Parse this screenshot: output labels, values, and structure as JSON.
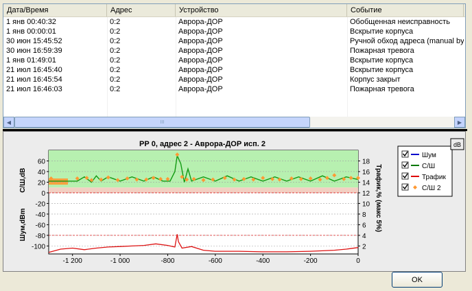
{
  "events": {
    "columns": [
      "Дата/Время",
      "Адрес",
      "Устройство",
      "Событие"
    ],
    "rows": [
      [
        "1 янв 00:40:32",
        "0:2",
        "Аврора-ДОР",
        "Обобщенная неисправность"
      ],
      [
        "1 янв 00:00:01",
        "0:2",
        "Аврора-ДОР",
        "Вскрытие корпуса"
      ],
      [
        "30 июн 15:45:52",
        "0:2",
        "Аврора-ДОР",
        "Ручной обход адреса (manual bypass)"
      ],
      [
        "30 июн 16:59:39",
        "0:2",
        "Аврора-ДОР",
        "Пожарная тревога"
      ],
      [
        "1 янв 01:49:01",
        "0:2",
        "Аврора-ДОР",
        "Вскрытие корпуса"
      ],
      [
        "21 июл 16:45:40",
        "0:2",
        "Аврора-ДОР",
        "Вскрытие корпуса"
      ],
      [
        "21 июл 16:45:54",
        "0:2",
        "Аврора-ДОР",
        "Корпус закрыт"
      ],
      [
        "21 июл 16:46:03",
        "0:2",
        "Аврора-ДОР",
        "Пожарная тревога"
      ]
    ],
    "scroll_left_icon": "arrow-left-icon",
    "scroll_right_icon": "arrow-right-icon",
    "scroll_thumb_grip": "III"
  },
  "chart": {
    "title": "РР 0, адрес 2 - Аврора-ДОР исп. 2",
    "db_button": "dB",
    "left_label_top": "С/Ш,dB",
    "left_label_bottom": "Шум,dBm",
    "right_label": "Трафик,% (макс 5%)",
    "legend": [
      {
        "label": "Шум",
        "color": "#0000cc",
        "checked": true,
        "marker": "line"
      },
      {
        "label": "С/Ш",
        "color": "#007700",
        "checked": true,
        "marker": "line"
      },
      {
        "label": "Трафик",
        "color": "#dd0000",
        "checked": true,
        "marker": "line"
      },
      {
        "label": "С/Ш 2",
        "color": "#ff9933",
        "checked": true,
        "marker": "diamond"
      }
    ],
    "colors": {
      "zone_good": "#b7f0b0",
      "zone_warn": "#f3cfc2",
      "snr": "#119911",
      "traffic": "#dd1111",
      "snr2": "#ff9933"
    }
  },
  "chart_data": {
    "type": "line",
    "title": "РР 0, адрес 2 - Аврора-ДОР исп. 2",
    "xlim": [
      -1300,
      0
    ],
    "x_ticks": [
      "-1 200",
      "-1 000",
      "-800",
      "-600",
      "-400",
      "-200",
      "0"
    ],
    "x_tick_values": [
      -1200,
      -1000,
      -800,
      -600,
      -400,
      -200,
      0
    ],
    "y_left_ticks": [
      60,
      40,
      20,
      0,
      -20,
      -40,
      -60,
      -80,
      -100
    ],
    "y_right_ticks": [
      18,
      16,
      14,
      12,
      10,
      8,
      6,
      4,
      2
    ],
    "ylim_left": [
      -115,
      80
    ],
    "series": [
      {
        "name": "С/Ш",
        "points": [
          [
            -1300,
            22
          ],
          [
            -1250,
            22
          ],
          [
            -1180,
            22
          ],
          [
            -1150,
            30
          ],
          [
            -1120,
            20
          ],
          [
            -1100,
            32
          ],
          [
            -1080,
            22
          ],
          [
            -1050,
            30
          ],
          [
            -1000,
            22
          ],
          [
            -950,
            30
          ],
          [
            -900,
            22
          ],
          [
            -860,
            30
          ],
          [
            -820,
            22
          ],
          [
            -790,
            22
          ],
          [
            -770,
            40
          ],
          [
            -760,
            70
          ],
          [
            -745,
            55
          ],
          [
            -730,
            20
          ],
          [
            -715,
            45
          ],
          [
            -700,
            22
          ],
          [
            -650,
            30
          ],
          [
            -600,
            22
          ],
          [
            -550,
            32
          ],
          [
            -500,
            22
          ],
          [
            -450,
            30
          ],
          [
            -400,
            22
          ],
          [
            -350,
            30
          ],
          [
            -300,
            22
          ],
          [
            -250,
            30
          ],
          [
            -200,
            22
          ],
          [
            -150,
            32
          ],
          [
            -100,
            22
          ],
          [
            -50,
            30
          ],
          [
            0,
            25
          ]
        ]
      },
      {
        "name": "Трафик",
        "points": [
          [
            -1300,
            -112
          ],
          [
            -1250,
            -106
          ],
          [
            -1200,
            -104
          ],
          [
            -1150,
            -107
          ],
          [
            -1100,
            -104
          ],
          [
            -1050,
            -102
          ],
          [
            -1000,
            -101
          ],
          [
            -950,
            -100
          ],
          [
            -900,
            -99
          ],
          [
            -850,
            -96
          ],
          [
            -800,
            -99
          ],
          [
            -770,
            -102
          ],
          [
            -760,
            -78
          ],
          [
            -755,
            -92
          ],
          [
            -740,
            -104
          ],
          [
            -700,
            -101
          ],
          [
            -650,
            -108
          ],
          [
            -600,
            -110
          ],
          [
            -500,
            -110
          ],
          [
            -400,
            -111
          ],
          [
            -300,
            -111
          ],
          [
            -200,
            -110
          ],
          [
            -100,
            -108
          ],
          [
            -50,
            -106
          ],
          [
            0,
            -103
          ]
        ]
      },
      {
        "name": "С/Ш 2",
        "points": [
          [
            -1290,
            27
          ],
          [
            -1180,
            27
          ],
          [
            -1140,
            28
          ],
          [
            -1120,
            24
          ],
          [
            -1080,
            25
          ],
          [
            -1050,
            29
          ],
          [
            -1010,
            24
          ],
          [
            -970,
            27
          ],
          [
            -930,
            25
          ],
          [
            -890,
            25
          ],
          [
            -860,
            28
          ],
          [
            -830,
            26
          ],
          [
            -800,
            26
          ],
          [
            -760,
            72
          ],
          [
            -740,
            30
          ],
          [
            -720,
            25
          ],
          [
            -690,
            26
          ],
          [
            -650,
            24
          ],
          [
            -610,
            25
          ],
          [
            -560,
            28
          ],
          [
            -520,
            25
          ],
          [
            -480,
            26
          ],
          [
            -440,
            25
          ],
          [
            -400,
            28
          ],
          [
            -360,
            26
          ],
          [
            -330,
            25
          ],
          [
            -280,
            27
          ],
          [
            -240,
            26
          ],
          [
            -200,
            27
          ],
          [
            -160,
            25
          ],
          [
            -130,
            28
          ],
          [
            -100,
            33
          ],
          [
            -60,
            26
          ],
          [
            -30,
            28
          ],
          [
            0,
            28
          ]
        ]
      }
    ],
    "legend_position": "right"
  }
}
